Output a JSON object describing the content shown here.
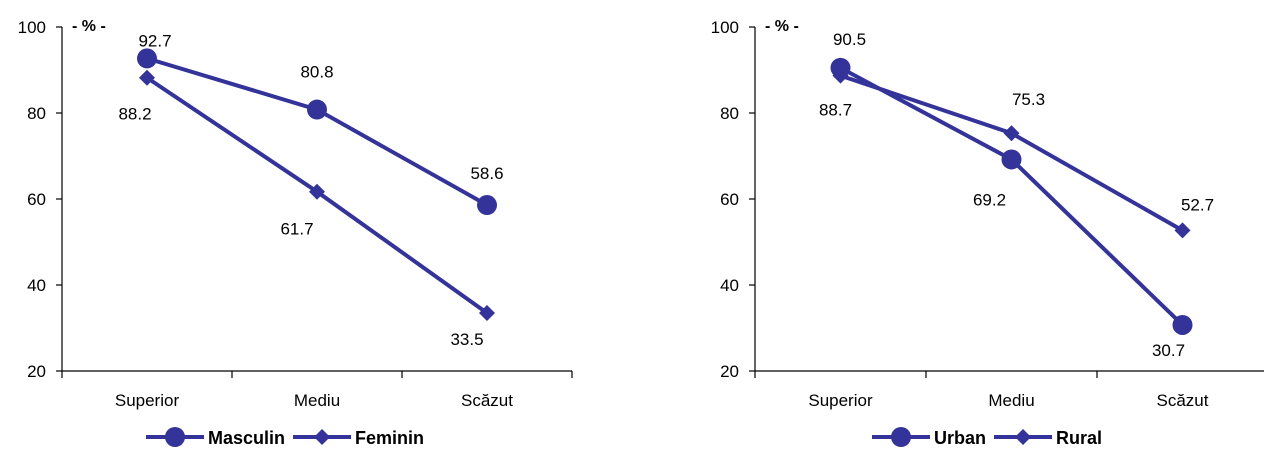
{
  "chart_data": [
    {
      "type": "line",
      "categories": [
        "Superior",
        "Mediu",
        "Scăzut"
      ],
      "ylim": [
        20,
        100
      ],
      "yticks": [
        20,
        40,
        60,
        80,
        100
      ],
      "unit_label": "- % -",
      "grid": false,
      "legend_position": "bottom",
      "series": [
        {
          "name": "Masculin",
          "marker": "circle",
          "values": [
            92.7,
            80.8,
            58.6
          ],
          "labels": [
            "92.7",
            "80.8",
            "58.6"
          ],
          "color": "#333399"
        },
        {
          "name": "Feminin",
          "marker": "diamond",
          "values": [
            88.2,
            61.7,
            33.5
          ],
          "labels": [
            "88.2",
            "61.7",
            "33.5"
          ],
          "color": "#333399"
        }
      ]
    },
    {
      "type": "line",
      "categories": [
        "Superior",
        "Mediu",
        "Scăzut"
      ],
      "ylim": [
        20,
        100
      ],
      "yticks": [
        20,
        40,
        60,
        80,
        100
      ],
      "unit_label": "- % -",
      "grid": false,
      "legend_position": "bottom",
      "series": [
        {
          "name": "Urban",
          "marker": "circle",
          "values": [
            90.5,
            69.2,
            30.7
          ],
          "labels": [
            "90.5",
            "69.2",
            "30.7"
          ],
          "color": "#333399"
        },
        {
          "name": "Rural",
          "marker": "diamond",
          "values": [
            88.7,
            75.3,
            52.7
          ],
          "labels": [
            "88.7",
            "75.3",
            "52.7"
          ],
          "color": "#333399"
        }
      ]
    }
  ]
}
